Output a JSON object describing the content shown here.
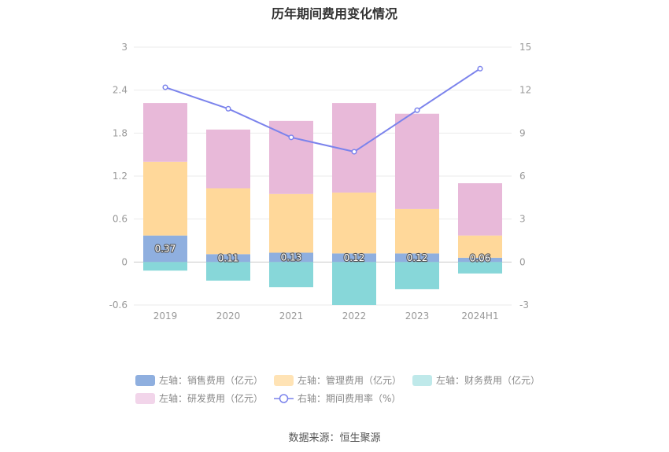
{
  "chart_data": {
    "type": "bar",
    "title": "历年期间费用变化情况",
    "categories": [
      "2019",
      "2020",
      "2021",
      "2022",
      "2023",
      "2024H1"
    ],
    "stacked": true,
    "series": [
      {
        "name": "左轴：销售费用（亿元）",
        "axis": "left",
        "color": "#8fafdf",
        "values": [
          0.37,
          0.11,
          0.13,
          0.12,
          0.12,
          0.06
        ],
        "labels": [
          "0.37",
          "0.11",
          "0.13",
          "0.12",
          "0.12",
          "0.06"
        ]
      },
      {
        "name": "左轴：管理费用（亿元）",
        "axis": "left",
        "color": "#ffd89a",
        "values": [
          1.03,
          0.92,
          0.82,
          0.85,
          0.62,
          0.31
        ]
      },
      {
        "name": "左轴：财务费用（亿元）",
        "axis": "left",
        "color": "#87d7d9",
        "values": [
          -0.12,
          -0.26,
          -0.35,
          -0.6,
          -0.38,
          -0.16
        ]
      },
      {
        "name": "左轴：研发费用（亿元）",
        "axis": "left",
        "color": "#e8b9d9",
        "values": [
          0.82,
          0.82,
          1.02,
          1.25,
          1.33,
          0.73
        ]
      }
    ],
    "line_series": {
      "name": "右轴：期间费用率（%）",
      "axis": "right",
      "color": "#7b83ec",
      "values": [
        12.2,
        10.7,
        8.7,
        7.7,
        10.6,
        13.5
      ]
    },
    "left_axis": {
      "min": -0.6,
      "max": 3,
      "ticks": [
        "-0.6",
        "0",
        "0.6",
        "1.2",
        "1.8",
        "2.4",
        "3"
      ]
    },
    "right_axis": {
      "min": -3,
      "max": 15,
      "ticks": [
        "-3",
        "0",
        "3",
        "6",
        "9",
        "12",
        "15"
      ]
    }
  },
  "legend": [
    {
      "label": "左轴：销售费用（亿元）",
      "color": "#8fafdf"
    },
    {
      "label": "左轴：管理费用（亿元）",
      "color": "#ffe3b5"
    },
    {
      "label": "左轴：财务费用（亿元）",
      "color": "#bfe9ea"
    },
    {
      "label": "左轴：研发费用（亿元）",
      "color": "#f2d5ea"
    },
    {
      "label": "右轴：期间费用率（%）",
      "color": "#7b83ec",
      "is_line": true
    }
  ],
  "source": "数据来源：恒生聚源"
}
